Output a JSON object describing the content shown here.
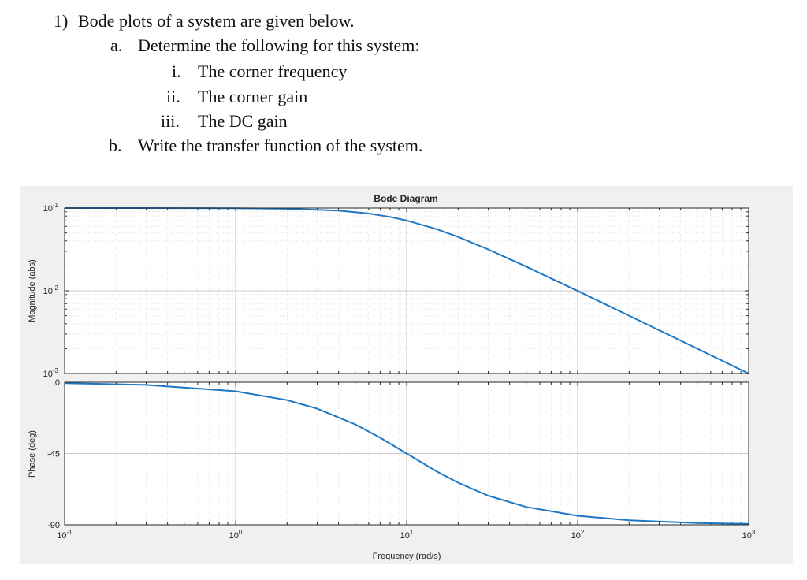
{
  "problem": {
    "number": "1)",
    "intro": "Bode plots of a system are given below.",
    "part_a_label": "a.",
    "part_a_text": "Determine the following for this system:",
    "items": [
      {
        "label": "i.",
        "text": "The corner frequency"
      },
      {
        "label": "ii.",
        "text": "The corner gain"
      },
      {
        "label": "iii.",
        "text": "The DC gain"
      }
    ],
    "part_b_label": "b.",
    "part_b_text": "Write the transfer function of the system."
  },
  "chart_data": [
    {
      "type": "line",
      "title": "Bode Diagram",
      "ylabel": "Magnitude (abs)",
      "xlabel": "",
      "xscale": "log",
      "yscale": "log",
      "xlim": [
        0.1,
        1000
      ],
      "ylim": [
        0.001,
        0.1
      ],
      "ytick_labels": [
        {
          "base": "10",
          "exp": "-1"
        },
        {
          "base": "10",
          "exp": "-2"
        },
        {
          "base": "10",
          "exp": "-3"
        }
      ],
      "grid": true,
      "color": "#1f77c2",
      "series": [
        {
          "x": [
            0.1,
            0.3,
            1,
            2,
            4,
            6,
            8,
            10,
            15,
            20,
            30,
            50,
            100,
            200,
            500,
            1000
          ],
          "values": [
            0.1,
            0.1,
            0.0995,
            0.098,
            0.093,
            0.0857,
            0.078,
            0.0707,
            0.0555,
            0.0447,
            0.0316,
            0.0196,
            0.00995,
            0.005,
            0.002,
            0.001
          ]
        }
      ]
    },
    {
      "type": "line",
      "ylabel": "Phase (deg)",
      "xlabel": "Frequency (rad/s)",
      "xscale": "log",
      "xlim": [
        0.1,
        1000
      ],
      "ylim": [
        -90,
        0
      ],
      "ytick_labels": [
        "0",
        "-45",
        "-90"
      ],
      "xtick_labels": [
        {
          "base": "10",
          "exp": "-1"
        },
        {
          "base": "10",
          "exp": "0"
        },
        {
          "base": "10",
          "exp": "1"
        },
        {
          "base": "10",
          "exp": "2"
        },
        {
          "base": "10",
          "exp": "3"
        }
      ],
      "grid": true,
      "color": "#1f77c2",
      "series": [
        {
          "x": [
            0.1,
            0.3,
            1,
            2,
            3,
            5,
            7,
            10,
            15,
            20,
            30,
            50,
            100,
            200,
            500,
            1000
          ],
          "values": [
            -0.6,
            -1.7,
            -5.7,
            -11.3,
            -16.7,
            -26.6,
            -35.0,
            -45.0,
            -56.3,
            -63.4,
            -71.6,
            -78.7,
            -84.3,
            -87.1,
            -88.9,
            -89.4
          ]
        }
      ]
    }
  ]
}
